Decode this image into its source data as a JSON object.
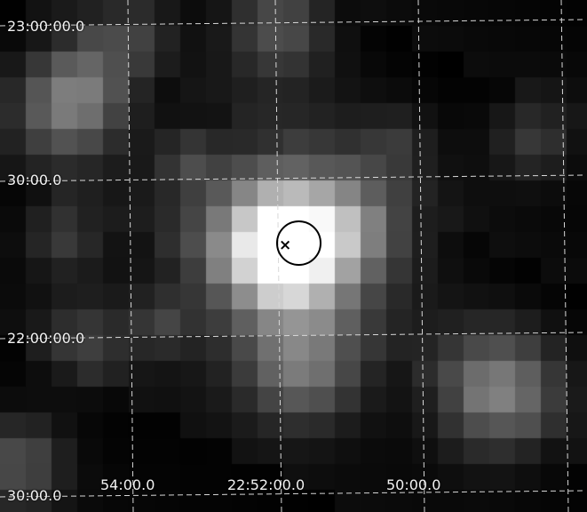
{
  "image": {
    "description_style": "grayscale pixelated sky map with dashed coordinate grid",
    "colors": {
      "background": "#050505",
      "grid": "#d8d8d8",
      "label": "#f2f2f2",
      "marker": "#000000"
    }
  },
  "axes": {
    "dec_labels": [
      "23:00:00.0",
      "30:00.0",
      "22:00:00.0",
      "30:00.0"
    ],
    "ra_labels": [
      "54:00.0",
      "22:52:00.0",
      "50:00.0"
    ]
  },
  "marker": {
    "symbol": "×",
    "type": "circle-with-cross"
  }
}
